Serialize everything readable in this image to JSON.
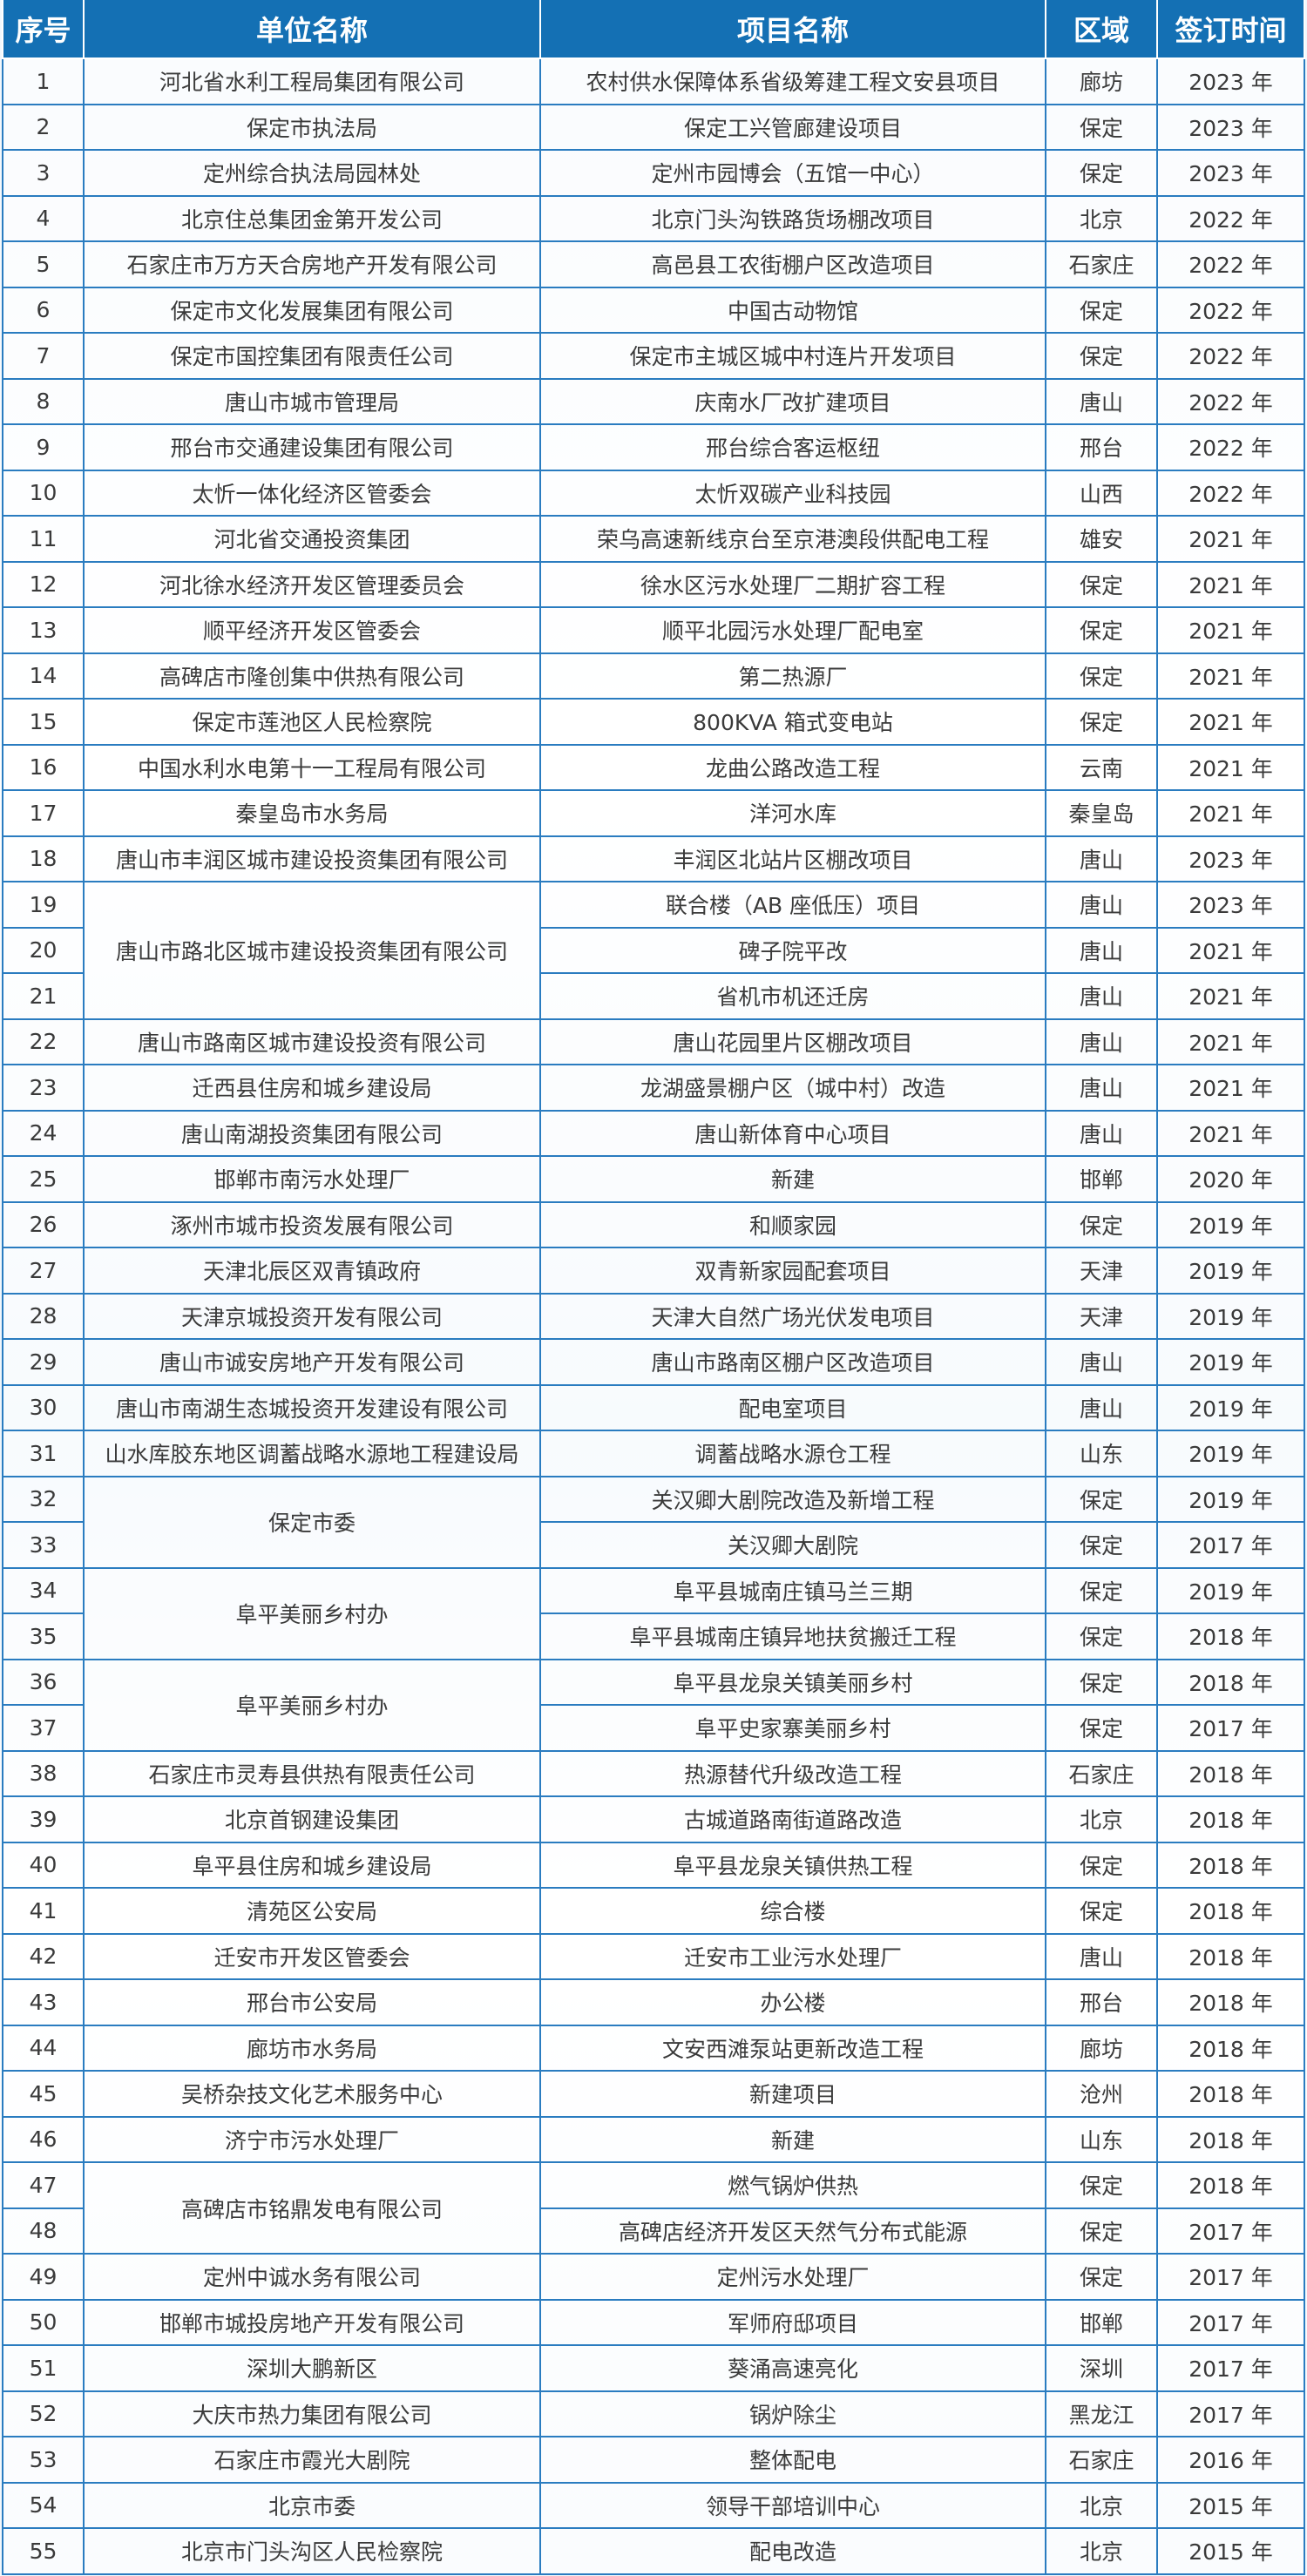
{
  "header": {
    "seq": "序号",
    "unit": "单位名称",
    "project": "项目名称",
    "region": "区域",
    "date": "签订时间"
  },
  "colors": {
    "header_bg": "#1470b4",
    "border": "#2a7cc0",
    "text": "#3a3a3a"
  },
  "rows": [
    {
      "no": "1",
      "unit": "河北省水利工程局集团有限公司",
      "project": "农村供水保障体系省级筹建工程文安县项目",
      "region": "廊坊",
      "date": "2023 年"
    },
    {
      "no": "2",
      "unit": "保定市执法局",
      "project": "保定工兴管廊建设项目",
      "region": "保定",
      "date": "2023 年"
    },
    {
      "no": "3",
      "unit": "定州综合执法局园林处",
      "project": "定州市园博会（五馆一中心）",
      "region": "保定",
      "date": "2023 年"
    },
    {
      "no": "4",
      "unit": "北京住总集团金第开发公司",
      "project": "北京门头沟铁路货场棚改项目",
      "region": "北京",
      "date": "2022 年"
    },
    {
      "no": "5",
      "unit": "石家庄市万方天合房地产开发有限公司",
      "project": "高邑县工农街棚户区改造项目",
      "region": "石家庄",
      "date": "2022 年"
    },
    {
      "no": "6",
      "unit": "保定市文化发展集团有限公司",
      "project": "中国古动物馆",
      "region": "保定",
      "date": "2022 年"
    },
    {
      "no": "7",
      "unit": "保定市国控集团有限责任公司",
      "project": "保定市主城区城中村连片开发项目",
      "region": "保定",
      "date": "2022 年"
    },
    {
      "no": "8",
      "unit": "唐山市城市管理局",
      "project": "庆南水厂改扩建项目",
      "region": "唐山",
      "date": "2022 年"
    },
    {
      "no": "9",
      "unit": "邢台市交通建设集团有限公司",
      "project": "邢台综合客运枢纽",
      "region": "邢台",
      "date": "2022 年"
    },
    {
      "no": "10",
      "unit": "太忻一体化经济区管委会",
      "project": "太忻双碳产业科技园",
      "region": "山西",
      "date": "2022 年"
    },
    {
      "no": "11",
      "unit": "河北省交通投资集团",
      "project": "荣乌高速新线京台至京港澳段供配电工程",
      "region": "雄安",
      "date": "2021 年"
    },
    {
      "no": "12",
      "unit": "河北徐水经济开发区管理委员会",
      "project": "徐水区污水处理厂二期扩容工程",
      "region": "保定",
      "date": "2021 年"
    },
    {
      "no": "13",
      "unit": "顺平经济开发区管委会",
      "project": "顺平北园污水处理厂配电室",
      "region": "保定",
      "date": "2021 年"
    },
    {
      "no": "14",
      "unit": "高碑店市隆创集中供热有限公司",
      "project": "第二热源厂",
      "region": "保定",
      "date": "2021 年"
    },
    {
      "no": "15",
      "unit": "保定市莲池区人民检察院",
      "project": "800KVA 箱式变电站",
      "region": "保定",
      "date": "2021 年"
    },
    {
      "no": "16",
      "unit": "中国水利水电第十一工程局有限公司",
      "project": "龙曲公路改造工程",
      "region": "云南",
      "date": "2021 年"
    },
    {
      "no": "17",
      "unit": "秦皇岛市水务局",
      "project": "洋河水库",
      "region": "秦皇岛",
      "date": "2021 年"
    },
    {
      "no": "18",
      "unit": "唐山市丰润区城市建设投资集团有限公司",
      "project": "丰润区北站片区棚改项目",
      "region": "唐山",
      "date": "2023 年"
    },
    {
      "no": "19",
      "unit": "唐山市路北区城市建设投资集团有限公司",
      "project": "联合楼（AB 座低压）项目",
      "region": "唐山",
      "date": "2023 年"
    },
    {
      "no": "20",
      "project": "碑子院平改",
      "region": "唐山",
      "date": "2021 年"
    },
    {
      "no": "21",
      "project": "省机市机还迁房",
      "region": "唐山",
      "date": "2021 年"
    },
    {
      "no": "22",
      "unit": "唐山市路南区城市建设投资有限公司",
      "project": "唐山花园里片区棚改项目",
      "region": "唐山",
      "date": "2021 年"
    },
    {
      "no": "23",
      "unit": "迁西县住房和城乡建设局",
      "project": "龙湖盛景棚户区（城中村）改造",
      "region": "唐山",
      "date": "2021 年"
    },
    {
      "no": "24",
      "unit": "唐山南湖投资集团有限公司",
      "project": "唐山新体育中心项目",
      "region": "唐山",
      "date": "2021 年"
    },
    {
      "no": "25",
      "unit": "邯郸市南污水处理厂",
      "project": "新建",
      "region": "邯郸",
      "date": "2020 年"
    },
    {
      "no": "26",
      "unit": "涿州市城市投资发展有限公司",
      "project": "和顺家园",
      "region": "保定",
      "date": "2019 年"
    },
    {
      "no": "27",
      "unit": "天津北辰区双青镇政府",
      "project": "双青新家园配套项目",
      "region": "天津",
      "date": "2019 年"
    },
    {
      "no": "28",
      "unit": "天津京城投资开发有限公司",
      "project": "天津大自然广场光伏发电项目",
      "region": "天津",
      "date": "2019 年"
    },
    {
      "no": "29",
      "unit": "唐山市诚安房地产开发有限公司",
      "project": "唐山市路南区棚户区改造项目",
      "region": "唐山",
      "date": "2019 年"
    },
    {
      "no": "30",
      "unit": "唐山市南湖生态城投资开发建设有限公司",
      "project": "配电室项目",
      "region": "唐山",
      "date": "2019 年"
    },
    {
      "no": "31",
      "unit": "山水库胶东地区调蓄战略水源地工程建设局",
      "project": "调蓄战略水源仓工程",
      "region": "山东",
      "date": "2019 年"
    },
    {
      "no": "32",
      "unit": "保定市委",
      "project": "关汉卿大剧院改造及新增工程",
      "region": "保定",
      "date": "2019 年"
    },
    {
      "no": "33",
      "project": "关汉卿大剧院",
      "region": "保定",
      "date": "2017 年"
    },
    {
      "no": "34",
      "unit": "阜平美丽乡村办",
      "project": "阜平县城南庄镇马兰三期",
      "region": "保定",
      "date": "2019 年"
    },
    {
      "no": "35",
      "project": "阜平县城南庄镇异地扶贫搬迁工程",
      "region": "保定",
      "date": "2018 年"
    },
    {
      "no": "36",
      "unit": "阜平美丽乡村办",
      "project": "阜平县龙泉关镇美丽乡村",
      "region": "保定",
      "date": "2018 年"
    },
    {
      "no": "37",
      "project": "阜平史家寨美丽乡村",
      "region": "保定",
      "date": "2017 年"
    },
    {
      "no": "38",
      "unit": "石家庄市灵寿县供热有限责任公司",
      "project": "热源替代升级改造工程",
      "region": "石家庄",
      "date": "2018 年"
    },
    {
      "no": "39",
      "unit": "北京首钢建设集团",
      "project": "古城道路南街道路改造",
      "region": "北京",
      "date": "2018 年"
    },
    {
      "no": "40",
      "unit": "阜平县住房和城乡建设局",
      "project": "阜平县龙泉关镇供热工程",
      "region": "保定",
      "date": "2018 年"
    },
    {
      "no": "41",
      "unit": "清苑区公安局",
      "project": "综合楼",
      "region": "保定",
      "date": "2018 年"
    },
    {
      "no": "42",
      "unit": "迁安市开发区管委会",
      "project": "迁安市工业污水处理厂",
      "region": "唐山",
      "date": "2018 年"
    },
    {
      "no": "43",
      "unit": "邢台市公安局",
      "project": "办公楼",
      "region": "邢台",
      "date": "2018 年"
    },
    {
      "no": "44",
      "unit": "廊坊市水务局",
      "project": "文安西滩泵站更新改造工程",
      "region": "廊坊",
      "date": "2018 年"
    },
    {
      "no": "45",
      "unit": "吴桥杂技文化艺术服务中心",
      "project": "新建项目",
      "region": "沧州",
      "date": "2018 年"
    },
    {
      "no": "46",
      "unit": "济宁市污水处理厂",
      "project": "新建",
      "region": "山东",
      "date": "2018 年"
    },
    {
      "no": "47",
      "unit": "高碑店市铭鼎发电有限公司",
      "project": "燃气锅炉供热",
      "region": "保定",
      "date": "2018 年"
    },
    {
      "no": "48",
      "project": "高碑店经济开发区天然气分布式能源",
      "region": "保定",
      "date": "2017 年"
    },
    {
      "no": "49",
      "unit": "定州中诚水务有限公司",
      "project": "定州污水处理厂",
      "region": "保定",
      "date": "2017 年"
    },
    {
      "no": "50",
      "unit": "邯郸市城投房地产开发有限公司",
      "project": "军师府邸项目",
      "region": "邯郸",
      "date": "2017 年"
    },
    {
      "no": "51",
      "unit": "深圳大鹏新区",
      "project": "葵涌高速亮化",
      "region": "深圳",
      "date": "2017 年"
    },
    {
      "no": "52",
      "unit": "大庆市热力集团有限公司",
      "project": "锅炉除尘",
      "region": "黑龙江",
      "date": "2017 年"
    },
    {
      "no": "53",
      "unit": "石家庄市霞光大剧院",
      "project": "整体配电",
      "region": "石家庄",
      "date": "2016 年"
    },
    {
      "no": "54",
      "unit": "北京市委",
      "project": "领导干部培训中心",
      "region": "北京",
      "date": "2015 年"
    },
    {
      "no": "55",
      "unit": "北京市门头沟区人民检察院",
      "project": "配电改造",
      "region": "北京",
      "date": "2015 年"
    }
  ]
}
